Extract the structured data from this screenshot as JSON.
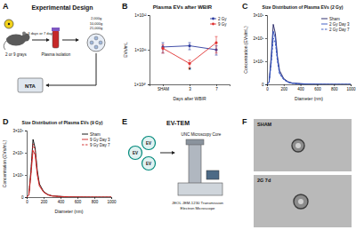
{
  "experimental_design": {
    "panel": "A",
    "title": "Experimental Design",
    "dose": "2 or 9 grays",
    "timepoints": "3 days or 7 days",
    "speeds": [
      "2,000g",
      "10,000g",
      "21,000g"
    ],
    "step": "Plasma isolation",
    "method": "NTA"
  },
  "ev_tem": {
    "panel": "E",
    "title": "EV-TEM",
    "vesicles": [
      "EV",
      "EV",
      "EV"
    ],
    "facility": "UNC Microscopy Core",
    "instrument": [
      "JEOL JEM-1230 Transmission",
      "Electron Microscope"
    ]
  },
  "tem_images": {
    "panel": "F",
    "images": [
      "SHAM",
      "2G 7d"
    ]
  },
  "chart_data": [
    {
      "panel": "B",
      "type": "line",
      "title": "Plasma EVs after WBIR",
      "x_label": "Days after WBIR",
      "y_label": "EVs/mL",
      "categories": [
        "SHAM",
        "3",
        "7"
      ],
      "log": "y",
      "ylim": [
        10000000000.0,
        1000000000000.0
      ],
      "yticks": [
        {
          "value": 10000000000.0,
          "label": "1×10¹⁰"
        },
        {
          "value": 100000000000.0,
          "label": "1×10¹¹"
        },
        {
          "value": 1000000000000.0,
          "label": "1×10¹²"
        }
      ],
      "marker": "circle",
      "grid": false,
      "legend": "top-right",
      "series": [
        {
          "name": "2 Gy",
          "color": "#2b3a9e",
          "line_style": "solid",
          "values": [
            120000000000.0,
            130000000000.0,
            100000000000.0
          ],
          "errors": [
            40000000000.0,
            30000000000.0,
            30000000000.0
          ]
        },
        {
          "name": "9 Gy",
          "color": "#e03030",
          "line_style": "solid",
          "values": [
            110000000000.0,
            40000000000.0,
            160000000000.0
          ],
          "errors": [
            30000000000.0,
            10000000000.0,
            80000000000.0
          ]
        }
      ],
      "annotations": [
        {
          "text": "*",
          "series": "9 Gy",
          "category": "3"
        }
      ]
    },
    {
      "panel": "C",
      "type": "line",
      "title": "Size Distribution of Plasma EVs (2 Gy)",
      "x_label": "Diameter (nm)",
      "y_label": "Concentration (EVs/mL)",
      "x": [
        0,
        25,
        50,
        75,
        100,
        125,
        150,
        200,
        250,
        300,
        400,
        500,
        600,
        800,
        1000
      ],
      "xlim": [
        0,
        1000
      ],
      "xticks": [
        0,
        200,
        400,
        600,
        800,
        1000
      ],
      "ylim": [
        0,
        3000000000.0
      ],
      "yticks": [
        0,
        {
          "value": 1000000000.0,
          "label": "1×10⁹"
        },
        {
          "value": 2000000000.0,
          "label": "2×10⁹"
        },
        {
          "value": 3000000000.0,
          "label": "3×10⁹"
        }
      ],
      "grid": false,
      "legend": "top-right",
      "series": [
        {
          "name": "Sham",
          "color": "#1a1a5e",
          "line_style": "solid",
          "values": [
            0,
            100000000.0,
            1200000000.0,
            2600000000.0,
            2200000000.0,
            1200000000.0,
            600000000.0,
            250000000.0,
            120000000.0,
            60000000.0,
            30000000.0,
            10000000.0,
            5000000.0,
            0,
            0
          ]
        },
        {
          "name": "2 Gy Day 3",
          "color": "#3050c0",
          "line_style": "solid",
          "values": [
            0,
            100000000.0,
            1000000000.0,
            2300000000.0,
            2000000000.0,
            1100000000.0,
            500000000.0,
            220000000.0,
            100000000.0,
            50000000.0,
            25000000.0,
            10000000.0,
            5000000.0,
            0,
            0
          ]
        },
        {
          "name": "2 Gy Day 7",
          "color": "#3050c0",
          "line_style": "dashed",
          "values": [
            0,
            80000000.0,
            900000000.0,
            2000000000.0,
            1800000000.0,
            1000000000.0,
            450000000.0,
            200000000.0,
            90000000.0,
            45000000.0,
            20000000.0,
            10000000.0,
            5000000.0,
            0,
            0
          ]
        }
      ]
    },
    {
      "panel": "D",
      "type": "line",
      "title": "Size Distribution of Plasma EVs (9 Gy)",
      "x_label": "Diameter (nm)",
      "y_label": "Concentration (EVs/mL)",
      "x": [
        0,
        25,
        50,
        75,
        100,
        125,
        150,
        200,
        250,
        300,
        400,
        500,
        600,
        800,
        1000
      ],
      "xlim": [
        0,
        1000
      ],
      "xticks": [
        0,
        200,
        400,
        600,
        800,
        1000
      ],
      "ylim": [
        0,
        3000000000.0
      ],
      "yticks": [
        0,
        {
          "value": 1000000000.0,
          "label": "1×10⁹"
        },
        {
          "value": 2000000000.0,
          "label": "2×10⁹"
        },
        {
          "value": 3000000000.0,
          "label": "3×10⁹"
        }
      ],
      "grid": false,
      "legend": "top-right",
      "series": [
        {
          "name": "Sham",
          "color": "#000000",
          "line_style": "solid",
          "values": [
            0,
            100000000.0,
            1200000000.0,
            2600000000.0,
            2200000000.0,
            1200000000.0,
            600000000.0,
            250000000.0,
            120000000.0,
            60000000.0,
            30000000.0,
            10000000.0,
            5000000.0,
            0,
            0
          ]
        },
        {
          "name": "9 Gy Day 3",
          "color": "#d02020",
          "line_style": "solid",
          "values": [
            0,
            90000000.0,
            1000000000.0,
            2100000000.0,
            1900000000.0,
            1000000000.0,
            500000000.0,
            220000000.0,
            100000000.0,
            50000000.0,
            25000000.0,
            10000000.0,
            5000000.0,
            0,
            0
          ]
        },
        {
          "name": "9 Gy Day 7",
          "color": "#d02020",
          "line_style": "dashed",
          "values": [
            0,
            100000000.0,
            1100000000.0,
            2400000000.0,
            2100000000.0,
            1100000000.0,
            550000000.0,
            240000000.0,
            110000000.0,
            55000000.0,
            28000000.0,
            10000000.0,
            5000000.0,
            0,
            0
          ]
        }
      ]
    }
  ]
}
